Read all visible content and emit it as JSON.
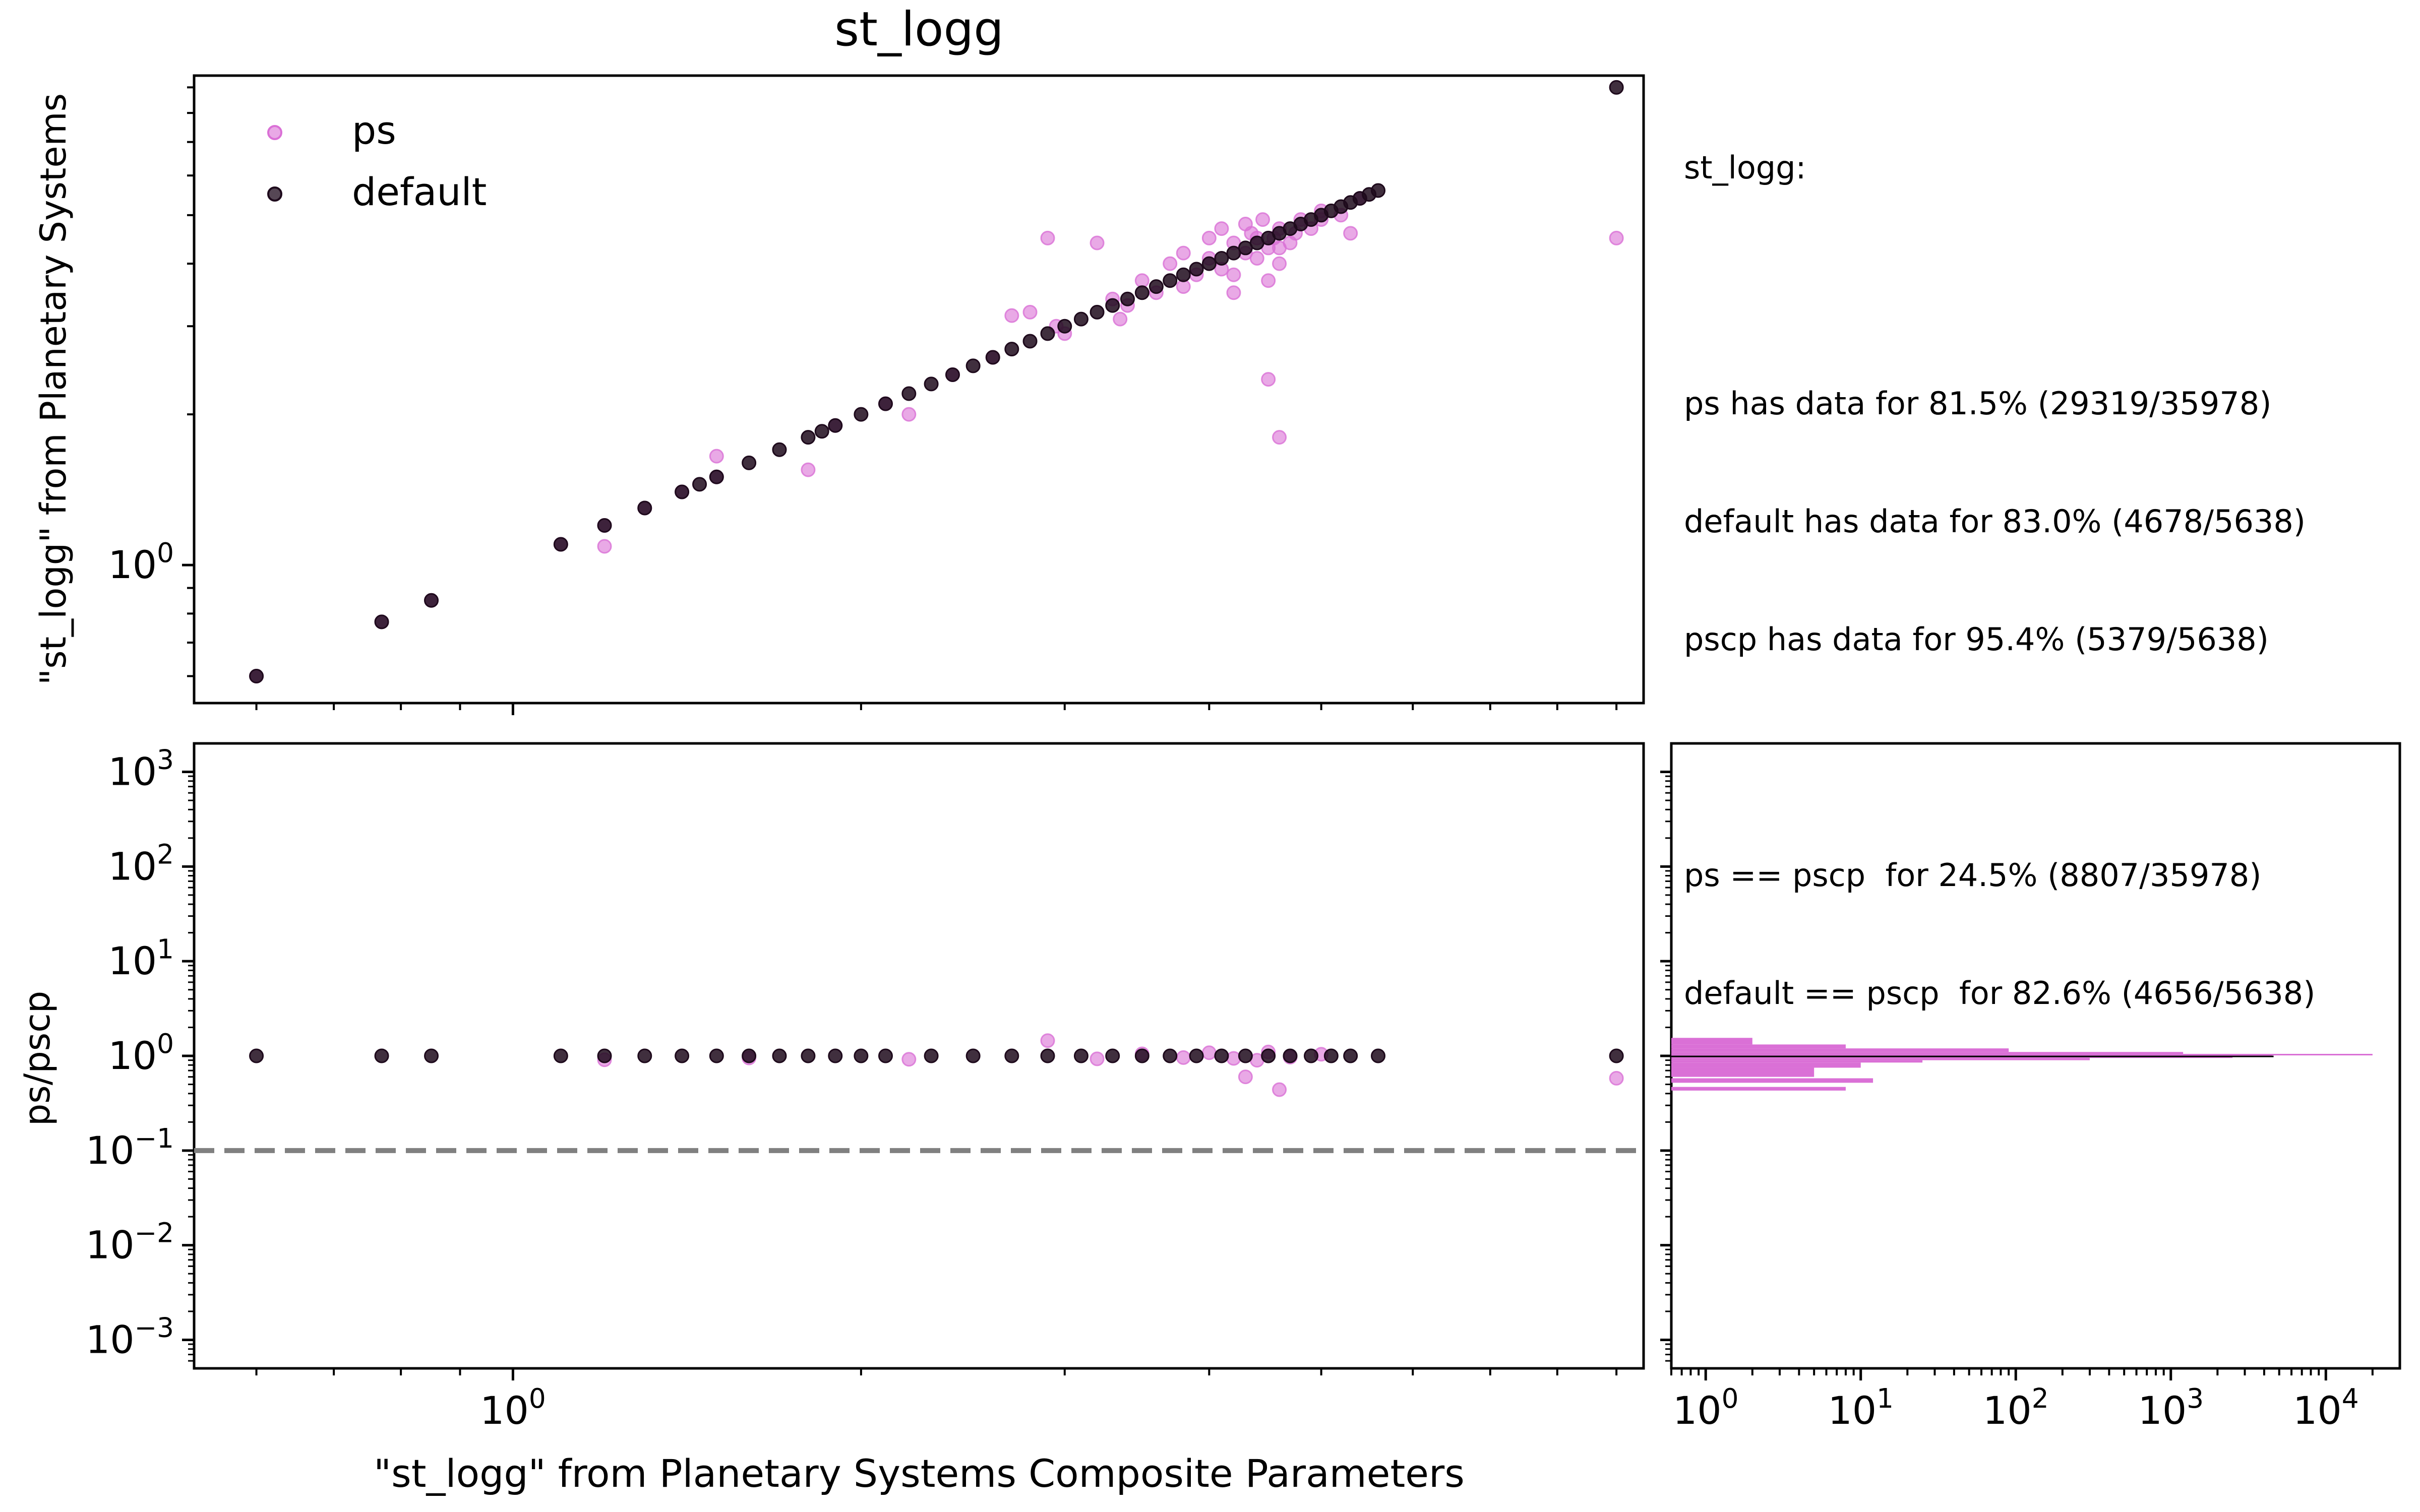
{
  "chart_data": [
    {
      "type": "scatter",
      "title": "st_logg",
      "ylabel": "\"st_logg\" from Planetary Systems",
      "xscale": "log",
      "yscale": "log",
      "xlim": [
        0.53,
        9.5
      ],
      "ylim": [
        0.53,
        9.5
      ],
      "legend": {
        "placement": "top-left",
        "entries": [
          "ps",
          "default"
        ]
      },
      "x_ticks": [
        {
          "value": 1,
          "label": "10",
          "exp": "0"
        }
      ],
      "y_ticks": [
        {
          "value": 1,
          "label": "10",
          "exp": "0"
        }
      ],
      "series": [
        {
          "name": "ps",
          "color": "#da70d6",
          "opacity": 0.6,
          "points": [
            [
              0.6,
              0.6
            ],
            [
              0.77,
              0.77
            ],
            [
              0.85,
              0.85
            ],
            [
              1.1,
              1.1
            ],
            [
              1.2,
              1.2
            ],
            [
              1.2,
              1.09
            ],
            [
              1.3,
              1.3
            ],
            [
              1.4,
              1.4
            ],
            [
              1.5,
              1.5
            ],
            [
              1.5,
              1.65
            ],
            [
              1.8,
              1.55
            ],
            [
              1.9,
              1.9
            ],
            [
              2.1,
              2.1
            ],
            [
              2.2,
              2.0
            ],
            [
              2.4,
              2.4
            ],
            [
              2.6,
              2.6
            ],
            [
              2.7,
              3.15
            ],
            [
              2.8,
              3.2
            ],
            [
              2.9,
              4.5
            ],
            [
              2.95,
              3.0
            ],
            [
              3.0,
              2.9
            ],
            [
              3.2,
              4.4
            ],
            [
              3.3,
              3.4
            ],
            [
              3.35,
              3.1
            ],
            [
              3.4,
              3.3
            ],
            [
              3.5,
              3.7
            ],
            [
              3.6,
              3.5
            ],
            [
              3.7,
              4.0
            ],
            [
              3.8,
              3.6
            ],
            [
              3.9,
              3.8
            ],
            [
              4.0,
              4.1
            ],
            [
              4.1,
              3.9
            ],
            [
              4.2,
              4.4
            ],
            [
              4.3,
              4.2
            ],
            [
              4.4,
              4.5
            ],
            [
              4.5,
              4.3
            ],
            [
              4.6,
              4.7
            ],
            [
              4.6,
              4.0
            ],
            [
              4.7,
              4.4
            ],
            [
              4.8,
              4.9
            ],
            [
              4.9,
              4.7
            ],
            [
              5.0,
              5.1
            ],
            [
              4.1,
              4.7
            ],
            [
              4.2,
              3.8
            ],
            [
              4.3,
              4.8
            ],
            [
              4.4,
              4.1
            ],
            [
              4.5,
              3.7
            ],
            [
              4.45,
              4.9
            ],
            [
              4.6,
              4.3
            ],
            [
              4.5,
              2.35
            ],
            [
              4.6,
              1.8
            ],
            [
              4.2,
              3.5
            ],
            [
              4.0,
              4.5
            ],
            [
              3.8,
              4.2
            ],
            [
              4.35,
              4.6
            ],
            [
              4.55,
              4.5
            ],
            [
              4.75,
              4.6
            ],
            [
              5.0,
              4.9
            ],
            [
              5.2,
              5.0
            ],
            [
              5.4,
              5.4
            ],
            [
              5.3,
              4.6
            ],
            [
              9.0,
              4.5
            ]
          ]
        },
        {
          "name": "default",
          "color": "#1e0a1c",
          "opacity": 0.85,
          "points": [
            [
              0.6,
              0.6
            ],
            [
              0.77,
              0.77
            ],
            [
              0.85,
              0.85
            ],
            [
              1.1,
              1.1
            ],
            [
              1.2,
              1.2
            ],
            [
              1.3,
              1.3
            ],
            [
              1.4,
              1.4
            ],
            [
              1.45,
              1.45
            ],
            [
              1.5,
              1.5
            ],
            [
              1.6,
              1.6
            ],
            [
              1.7,
              1.7
            ],
            [
              1.8,
              1.8
            ],
            [
              1.85,
              1.85
            ],
            [
              1.9,
              1.9
            ],
            [
              2.0,
              2.0
            ],
            [
              2.1,
              2.1
            ],
            [
              2.2,
              2.2
            ],
            [
              2.3,
              2.3
            ],
            [
              2.4,
              2.4
            ],
            [
              2.5,
              2.5
            ],
            [
              2.6,
              2.6
            ],
            [
              2.7,
              2.7
            ],
            [
              2.8,
              2.8
            ],
            [
              2.9,
              2.9
            ],
            [
              3.0,
              3.0
            ],
            [
              3.1,
              3.1
            ],
            [
              3.2,
              3.2
            ],
            [
              3.3,
              3.3
            ],
            [
              3.4,
              3.4
            ],
            [
              3.5,
              3.5
            ],
            [
              3.6,
              3.6
            ],
            [
              3.7,
              3.7
            ],
            [
              3.8,
              3.8
            ],
            [
              3.9,
              3.9
            ],
            [
              4.0,
              4.0
            ],
            [
              4.1,
              4.1
            ],
            [
              4.2,
              4.2
            ],
            [
              4.3,
              4.3
            ],
            [
              4.4,
              4.4
            ],
            [
              4.5,
              4.5
            ],
            [
              4.6,
              4.6
            ],
            [
              4.7,
              4.7
            ],
            [
              4.8,
              4.8
            ],
            [
              4.9,
              4.9
            ],
            [
              5.0,
              5.0
            ],
            [
              5.1,
              5.1
            ],
            [
              5.2,
              5.2
            ],
            [
              5.3,
              5.3
            ],
            [
              5.4,
              5.4
            ],
            [
              5.5,
              5.5
            ],
            [
              5.6,
              5.6
            ],
            [
              9.0,
              9.0
            ]
          ]
        }
      ]
    },
    {
      "type": "scatter",
      "xlabel": "\"st_logg\" from Planetary Systems Composite Parameters",
      "ylabel": "ps/pscp",
      "xscale": "log",
      "yscale": "log",
      "xlim": [
        0.53,
        9.5
      ],
      "ylim": [
        0.0005,
        2000
      ],
      "x_ticks": [
        {
          "value": 1,
          "label": "10",
          "exp": "0"
        }
      ],
      "y_ticks": [
        {
          "value": 0.001,
          "label": "10",
          "exp": "−3"
        },
        {
          "value": 0.01,
          "label": "10",
          "exp": "−2"
        },
        {
          "value": 0.1,
          "label": "10",
          "exp": "−1"
        },
        {
          "value": 1,
          "label": "10",
          "exp": "0"
        },
        {
          "value": 10,
          "label": "10",
          "exp": "1"
        },
        {
          "value": 100,
          "label": "10",
          "exp": "2"
        },
        {
          "value": 1000,
          "label": "10",
          "exp": "3"
        }
      ],
      "reference_line": {
        "y": 0.1,
        "style": "dashed",
        "color": "#808080"
      },
      "series": [
        {
          "name": "ps",
          "color": "#da70d6",
          "opacity": 0.6,
          "points": [
            [
              1.2,
              0.91
            ],
            [
              1.6,
              0.95
            ],
            [
              2.2,
              0.92
            ],
            [
              2.9,
              1.45
            ],
            [
              3.2,
              0.93
            ],
            [
              3.5,
              1.05
            ],
            [
              3.8,
              0.96
            ],
            [
              4.0,
              1.08
            ],
            [
              4.2,
              0.94
            ],
            [
              4.4,
              0.9
            ],
            [
              4.5,
              1.1
            ],
            [
              4.3,
              0.6
            ],
            [
              4.6,
              0.44
            ],
            [
              4.7,
              0.97
            ],
            [
              5.0,
              1.04
            ],
            [
              9.0,
              0.58
            ]
          ]
        },
        {
          "name": "default",
          "color": "#1e0a1c",
          "opacity": 0.85,
          "points": [
            [
              0.6,
              1
            ],
            [
              0.77,
              1
            ],
            [
              0.85,
              1
            ],
            [
              1.1,
              1
            ],
            [
              1.2,
              1
            ],
            [
              1.3,
              1
            ],
            [
              1.4,
              1
            ],
            [
              1.5,
              1
            ],
            [
              1.6,
              1
            ],
            [
              1.7,
              1
            ],
            [
              1.8,
              1
            ],
            [
              1.9,
              1
            ],
            [
              2.0,
              1
            ],
            [
              2.1,
              1
            ],
            [
              2.3,
              1
            ],
            [
              2.5,
              1
            ],
            [
              2.7,
              1
            ],
            [
              2.9,
              1
            ],
            [
              3.1,
              1
            ],
            [
              3.3,
              1
            ],
            [
              3.5,
              1
            ],
            [
              3.7,
              1
            ],
            [
              3.9,
              1
            ],
            [
              4.1,
              1
            ],
            [
              4.3,
              1
            ],
            [
              4.5,
              1
            ],
            [
              4.7,
              1
            ],
            [
              4.9,
              1
            ],
            [
              5.1,
              1
            ],
            [
              5.3,
              1
            ],
            [
              5.6,
              1
            ],
            [
              9.0,
              1
            ]
          ]
        }
      ]
    },
    {
      "type": "bar",
      "orientation": "horizontal",
      "xscale": "log",
      "yscale": "log",
      "xlim": [
        0.6,
        30000
      ],
      "ylim": [
        0.0005,
        2000
      ],
      "x_ticks": [
        {
          "value": 1,
          "label": "10",
          "exp": "0"
        },
        {
          "value": 10,
          "label": "10",
          "exp": "1"
        },
        {
          "value": 100,
          "label": "10",
          "exp": "2"
        },
        {
          "value": 1000,
          "label": "10",
          "exp": "3"
        },
        {
          "value": 10000,
          "label": "10",
          "exp": "4"
        }
      ],
      "series": [
        {
          "name": "ps",
          "color": "#da70d6",
          "bins": [
            [
              1.02,
              1.05,
              20000
            ],
            [
              0.99,
              1.02,
              4500
            ],
            [
              1.05,
              1.1,
              1200
            ],
            [
              0.95,
              0.99,
              2500
            ],
            [
              0.9,
              0.95,
              300
            ],
            [
              1.1,
              1.2,
              90
            ],
            [
              0.85,
              0.9,
              25
            ],
            [
              1.2,
              1.32,
              8
            ],
            [
              1.32,
              1.55,
              2
            ],
            [
              0.75,
              0.85,
              10
            ],
            [
              0.6,
              0.75,
              5
            ],
            [
              0.52,
              0.58,
              12
            ],
            [
              0.43,
              0.47,
              8
            ]
          ]
        },
        {
          "name": "default",
          "color": "#000000",
          "bins": [
            [
              0.995,
              1.005,
              4600
            ]
          ]
        }
      ]
    }
  ],
  "stats": {
    "header": "st_logg:",
    "coverage": [
      "ps has data for 81.5% (29319/35978)",
      "default has data for 83.0% (4678/5638)",
      "pscp has data for 95.4% (5379/5638)"
    ],
    "matches": [
      "ps == pscp  for 24.5% (8807/35978)",
      "default == pscp  for 82.6% (4656/5638)"
    ]
  }
}
